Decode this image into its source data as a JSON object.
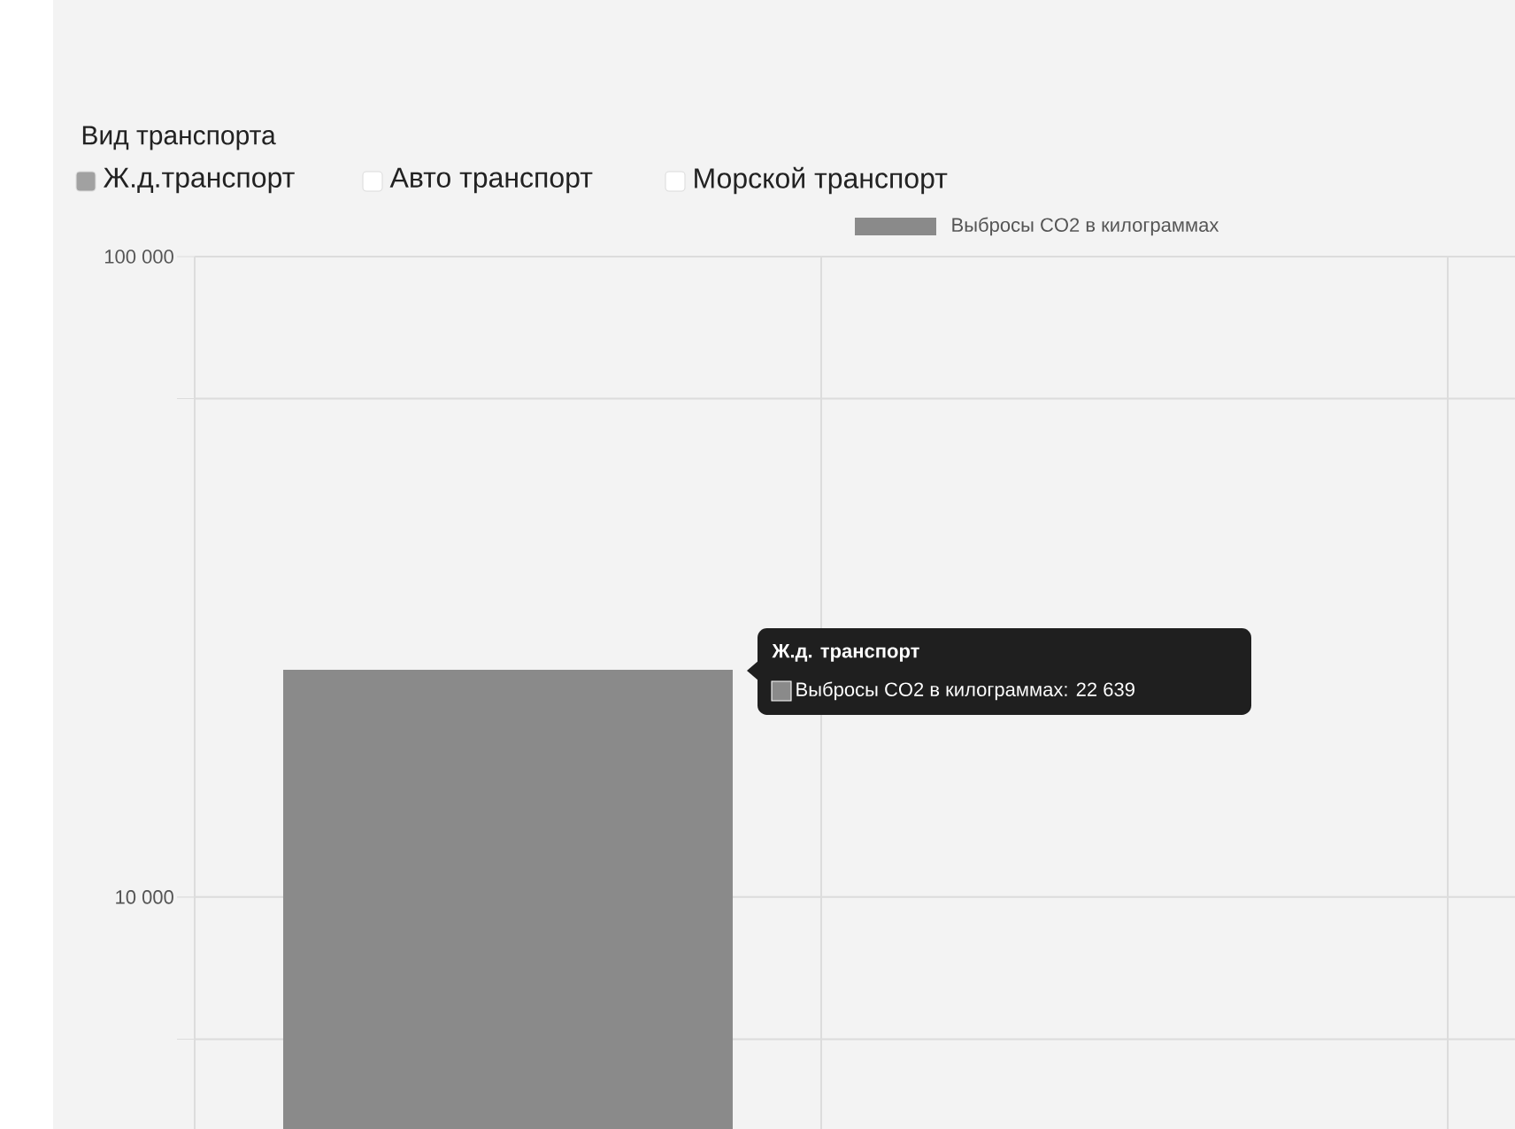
{
  "chart_data": {
    "type": "bar",
    "title": "Вид транспорта",
    "categories": [
      null,
      null,
      null
    ],
    "series": [
      {
        "name": "Выбросы CO2 в килограммах",
        "color": "#8a8a8a",
        "values": [
          22639,
          null,
          null
        ]
      }
    ],
    "log": "y",
    "ylim": [
      4345,
      100000
    ],
    "yticks": [
      {
        "value": 6000,
        "label": null
      },
      {
        "value": 10000,
        "label": "10 000"
      },
      {
        "value": 60000,
        "label": null
      },
      {
        "value": 100000,
        "label": "100 000"
      }
    ],
    "grid": true,
    "legend": "top",
    "annotations": [
      "Ж.д.транспорт",
      "Авто транспорт",
      "Морской транспорт",
      "Ж.д. транспорт",
      "Выбросы CO2 в килограммах: 22 639"
    ]
  }
}
